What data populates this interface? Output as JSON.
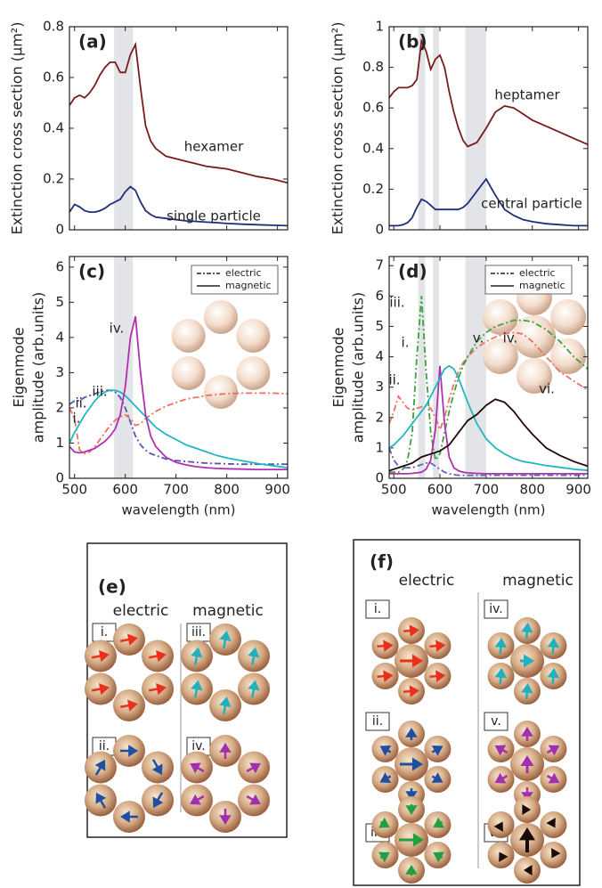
{
  "chart_data": [
    {
      "type": "line",
      "label": "(a)",
      "ylabel": [
        "Extinction cross section (μm²)"
      ],
      "xtick_labels": false,
      "x": [
        490,
        500,
        510,
        520,
        530,
        540,
        550,
        560,
        570,
        580,
        590,
        600,
        610,
        620,
        630,
        640,
        650,
        660,
        680,
        700,
        720,
        740,
        760,
        780,
        800,
        830,
        860,
        890,
        920
      ],
      "xlim": [
        490,
        920
      ],
      "xticks": [
        500,
        600,
        700,
        800,
        900
      ],
      "ylim": [
        0,
        0.8
      ],
      "yticks": [
        0,
        0.2,
        0.4,
        0.6,
        0.8
      ],
      "bands": [
        [
          578,
          615
        ]
      ],
      "series": [
        {
          "name": "hexamer",
          "color": "#7b1c1c",
          "values": [
            0.49,
            0.52,
            0.53,
            0.52,
            0.54,
            0.57,
            0.61,
            0.64,
            0.66,
            0.66,
            0.62,
            0.62,
            0.69,
            0.73,
            0.56,
            0.41,
            0.35,
            0.32,
            0.29,
            0.28,
            0.27,
            0.26,
            0.25,
            0.245,
            0.24,
            0.225,
            0.21,
            0.2,
            0.185
          ]
        },
        {
          "name": "single particle",
          "color": "#1f2d7a",
          "values": [
            0.07,
            0.1,
            0.09,
            0.075,
            0.07,
            0.07,
            0.075,
            0.085,
            0.1,
            0.11,
            0.12,
            0.15,
            0.17,
            0.155,
            0.11,
            0.075,
            0.06,
            0.05,
            0.045,
            0.04,
            0.035,
            0.033,
            0.03,
            0.028,
            0.025,
            0.022,
            0.02,
            0.018,
            0.016
          ]
        }
      ]
    },
    {
      "type": "line",
      "label": "(b)",
      "ylabel": [
        "Extinction cross section (μm²)"
      ],
      "xtick_labels": false,
      "x": [
        490,
        500,
        510,
        520,
        530,
        540,
        550,
        560,
        570,
        580,
        590,
        600,
        610,
        620,
        630,
        640,
        650,
        660,
        680,
        700,
        720,
        740,
        760,
        780,
        800,
        830,
        860,
        890,
        920
      ],
      "xlim": [
        490,
        920
      ],
      "xticks": [
        500,
        600,
        700,
        800,
        900
      ],
      "ylim": [
        0,
        1
      ],
      "yticks": [
        0,
        0.2,
        0.4,
        0.6,
        0.8,
        1
      ],
      "bands": [
        [
          553,
          568
        ],
        [
          585,
          598
        ],
        [
          655,
          700
        ]
      ],
      "series": [
        {
          "name": "heptamer",
          "color": "#7b1c1c",
          "values": [
            0.65,
            0.68,
            0.7,
            0.7,
            0.7,
            0.71,
            0.74,
            0.93,
            0.88,
            0.79,
            0.84,
            0.86,
            0.8,
            0.68,
            0.58,
            0.5,
            0.44,
            0.41,
            0.43,
            0.5,
            0.58,
            0.61,
            0.6,
            0.57,
            0.54,
            0.51,
            0.48,
            0.45,
            0.42
          ]
        },
        {
          "name": "central particle",
          "color": "#1f2d7a",
          "values": [
            0.02,
            0.02,
            0.02,
            0.025,
            0.035,
            0.06,
            0.11,
            0.15,
            0.14,
            0.12,
            0.1,
            0.1,
            0.1,
            0.1,
            0.1,
            0.1,
            0.11,
            0.13,
            0.19,
            0.25,
            0.17,
            0.1,
            0.07,
            0.05,
            0.04,
            0.03,
            0.025,
            0.02,
            0.02
          ]
        }
      ]
    },
    {
      "type": "line",
      "label": "(c)",
      "ylabel": [
        "Eigenmode",
        "amplitude (arb.units)"
      ],
      "xlabel": "wavelength (nm)",
      "x": [
        490,
        500,
        510,
        520,
        530,
        540,
        550,
        560,
        570,
        580,
        590,
        600,
        610,
        620,
        630,
        640,
        650,
        660,
        680,
        700,
        720,
        740,
        760,
        780,
        800,
        830,
        860,
        890,
        920
      ],
      "xlim": [
        490,
        920
      ],
      "xticks": [
        500,
        600,
        700,
        800,
        900
      ],
      "ylim": [
        0,
        6.3
      ],
      "yticks": [
        0,
        1,
        2,
        3,
        4,
        5,
        6
      ],
      "bands": [
        [
          578,
          615
        ]
      ],
      "legend": [
        {
          "label": "electric",
          "dash": true
        },
        {
          "label": "magnetic",
          "dash": false
        }
      ],
      "annotations": [
        "i.",
        "ii.",
        "iii.",
        "iv."
      ],
      "series": [
        {
          "color": "#5058b0",
          "dash": true,
          "values": [
            2.1,
            2.2,
            2.2,
            2.3,
            2.35,
            2.4,
            2.45,
            2.5,
            2.5,
            2.45,
            2.3,
            2.0,
            1.6,
            1.2,
            0.95,
            0.8,
            0.7,
            0.65,
            0.55,
            0.5,
            0.48,
            0.45,
            0.43,
            0.42,
            0.41,
            0.4,
            0.4,
            0.4,
            0.4
          ]
        },
        {
          "color": "#f07060",
          "dash": true,
          "values": [
            2.0,
            1.7,
            0.8,
            0.7,
            0.75,
            0.9,
            1.1,
            1.3,
            1.5,
            1.65,
            1.75,
            1.8,
            1.7,
            1.5,
            1.55,
            1.7,
            1.8,
            1.9,
            2.05,
            2.15,
            2.25,
            2.3,
            2.35,
            2.38,
            2.4,
            2.42,
            2.42,
            2.42,
            2.4
          ]
        },
        {
          "color": "#20b8c0",
          "dash": false,
          "values": [
            1.0,
            1.3,
            1.55,
            1.8,
            2.0,
            2.2,
            2.35,
            2.45,
            2.5,
            2.5,
            2.45,
            2.35,
            2.2,
            2.05,
            1.9,
            1.75,
            1.6,
            1.45,
            1.25,
            1.1,
            0.95,
            0.85,
            0.75,
            0.65,
            0.58,
            0.5,
            0.42,
            0.36,
            0.3
          ]
        },
        {
          "color": "#b030b0",
          "dash": false,
          "values": [
            0.9,
            0.75,
            0.72,
            0.75,
            0.8,
            0.85,
            0.95,
            1.05,
            1.2,
            1.4,
            1.8,
            2.6,
            4.0,
            4.6,
            3.0,
            1.8,
            1.2,
            0.9,
            0.6,
            0.45,
            0.38,
            0.33,
            0.3,
            0.28,
            0.27,
            0.26,
            0.25,
            0.25,
            0.25
          ]
        }
      ]
    },
    {
      "type": "line",
      "label": "(d)",
      "ylabel": [
        "Eigenmode",
        "amplitude (arb.units)"
      ],
      "xlabel": "wavelength (nm)",
      "x": [
        490,
        500,
        510,
        520,
        530,
        540,
        550,
        560,
        570,
        580,
        590,
        600,
        610,
        620,
        630,
        640,
        650,
        660,
        680,
        700,
        720,
        740,
        760,
        780,
        800,
        830,
        860,
        890,
        920
      ],
      "xlim": [
        490,
        920
      ],
      "xticks": [
        500,
        600,
        700,
        800,
        900
      ],
      "ylim": [
        0,
        7.3
      ],
      "yticks": [
        0,
        1,
        2,
        3,
        4,
        5,
        6,
        7
      ],
      "bands": [
        [
          553,
          568
        ],
        [
          585,
          598
        ],
        [
          655,
          700
        ]
      ],
      "legend": [
        {
          "label": "electric",
          "dash": true
        },
        {
          "label": "magnetic",
          "dash": false
        }
      ],
      "annotations": [
        "iii.",
        "i.",
        "ii.",
        "v.",
        "iv.",
        "vi."
      ],
      "series": [
        {
          "color": "#6060c0",
          "dash": true,
          "values": [
            1.0,
            0.6,
            0.4,
            0.35,
            0.35,
            0.35,
            0.4,
            0.45,
            0.5,
            0.5,
            0.4,
            0.3,
            0.2,
            0.15,
            0.12,
            0.1,
            0.1,
            0.1,
            0.1,
            0.1,
            0.1,
            0.1,
            0.1,
            0.1,
            0.1,
            0.1,
            0.1,
            0.1,
            0.1
          ]
        },
        {
          "color": "#f07060",
          "dash": true,
          "values": [
            1.8,
            2.2,
            2.7,
            2.5,
            2.3,
            2.25,
            2.3,
            2.35,
            2.4,
            2.3,
            2.0,
            1.6,
            2.0,
            2.6,
            3.1,
            3.5,
            3.8,
            4.0,
            4.3,
            4.5,
            4.65,
            4.75,
            4.8,
            4.75,
            4.5,
            4.0,
            3.5,
            3.2,
            2.9
          ]
        },
        {
          "color": "#40a040",
          "dash": true,
          "values": [
            0.2,
            0.2,
            0.2,
            0.3,
            0.6,
            1.5,
            4.0,
            6.0,
            3.5,
            1.5,
            0.6,
            0.8,
            1.5,
            2.2,
            2.8,
            3.3,
            3.7,
            4.0,
            4.5,
            4.8,
            5.0,
            5.1,
            5.2,
            5.2,
            5.15,
            4.9,
            4.5,
            4.0,
            3.6
          ]
        },
        {
          "color": "#b030b0",
          "dash": false,
          "values": [
            0.15,
            0.15,
            0.15,
            0.15,
            0.15,
            0.16,
            0.18,
            0.2,
            0.3,
            0.6,
            1.6,
            3.7,
            1.8,
            0.7,
            0.35,
            0.25,
            0.2,
            0.18,
            0.16,
            0.15,
            0.15,
            0.15,
            0.15,
            0.15,
            0.15,
            0.15,
            0.15,
            0.15,
            0.15
          ]
        },
        {
          "color": "#20b8c0",
          "dash": false,
          "values": [
            1.0,
            1.1,
            1.25,
            1.4,
            1.6,
            1.8,
            2.0,
            2.2,
            2.4,
            2.7,
            3.0,
            3.3,
            3.6,
            3.7,
            3.6,
            3.3,
            2.9,
            2.5,
            1.8,
            1.3,
            1.0,
            0.8,
            0.65,
            0.55,
            0.5,
            0.42,
            0.36,
            0.3,
            0.26
          ]
        },
        {
          "color": "#200808",
          "dash": false,
          "values": [
            0.25,
            0.3,
            0.35,
            0.4,
            0.45,
            0.5,
            0.6,
            0.7,
            0.75,
            0.8,
            0.85,
            0.9,
            1.0,
            1.1,
            1.3,
            1.5,
            1.7,
            1.9,
            2.1,
            2.4,
            2.6,
            2.5,
            2.2,
            1.8,
            1.45,
            1.0,
            0.75,
            0.55,
            0.4
          ]
        }
      ]
    }
  ],
  "diagrams": [
    {
      "panel": "(e)",
      "columns": [
        {
          "title": "electric",
          "modes": [
            "i.",
            "ii."
          ]
        },
        {
          "title": "magnetic",
          "modes": [
            "iii.",
            "iv."
          ]
        }
      ]
    },
    {
      "panel": "(f)",
      "columns": [
        {
          "title": "electric",
          "modes": [
            "i.",
            "ii.",
            "iii."
          ]
        },
        {
          "title": "magnetic",
          "modes": [
            "iv.",
            "v.",
            "vi."
          ]
        }
      ]
    }
  ]
}
